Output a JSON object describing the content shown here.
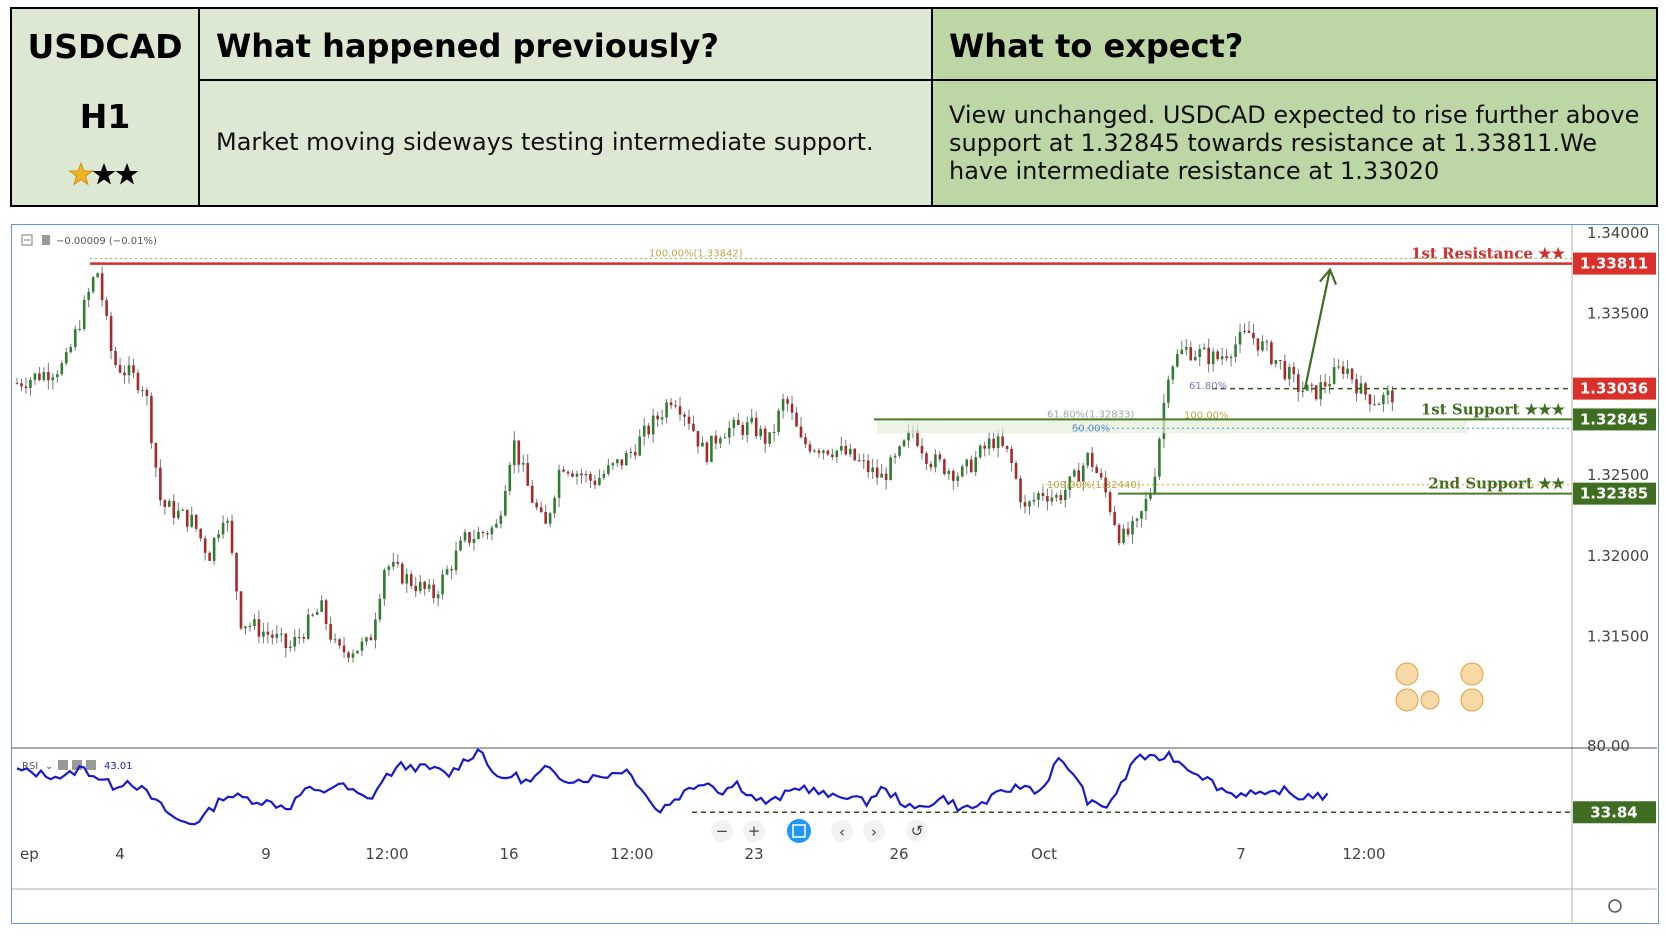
{
  "summary": {
    "symbol": "USDCAD",
    "timeframe": "H1",
    "stars_filled": 2,
    "stars_total": 3,
    "prev_heading": "What happened previously?",
    "prev_text": "Market moving sideways testing intermediate support.",
    "expect_heading": "What to expect?",
    "expect_text": "View unchanged. USDCAD expected to rise further above support at 1.32845 towards resistance at 1.33811.We have intermediate resistance at 1.33020"
  },
  "chart_header": {
    "change": "−0.00009 (−0.01%)"
  },
  "rsi_header": {
    "label": "RSI",
    "value": "43.01"
  },
  "colors": {
    "bull": "#2e7d32",
    "bear": "#a52a2a",
    "resistance": "#d32f2f",
    "support": "#4a7c2a",
    "rsi_line": "#1a1acd",
    "axis_text": "#444444"
  },
  "chart_data": {
    "type": "candlestick",
    "price_axis": {
      "min": 1.311,
      "max": 1.3405,
      "ticks": [
        "1.34000",
        "1.33500",
        "1.32500",
        "1.32000",
        "1.31500"
      ]
    },
    "x_axis": {
      "tick_labels": [
        "ep",
        "4",
        "9",
        "12:00",
        "16",
        "12:00",
        "23",
        "26",
        "Oct",
        "7",
        "12:00"
      ]
    },
    "levels": [
      {
        "name": "1st Resistance",
        "stars": "★★",
        "price": 1.33811,
        "label": "1.33811",
        "kind": "resistance"
      },
      {
        "name": "",
        "stars": "",
        "price": 1.33036,
        "label": "1.33036",
        "kind": "current"
      },
      {
        "name": "1st Support",
        "stars": "★★★",
        "price": 1.32845,
        "label": "1.32845",
        "kind": "support"
      },
      {
        "name": "2nd Support",
        "stars": "★★",
        "price": 1.32385,
        "label": "1.32385",
        "kind": "support"
      }
    ],
    "fib_labels": {
      "top": "100.00%(1.33842)",
      "retrace_618": "61.80%",
      "retrace_618b": "61.80%(1.32833)",
      "retrace_50": "50.00%",
      "ext_100": "100.00%",
      "ext_100b": "100.00%(1.32440)"
    },
    "price_path": [
      [
        0,
        1.3307
      ],
      [
        3,
        1.3318
      ],
      [
        5,
        1.3378
      ],
      [
        6,
        1.332
      ],
      [
        8,
        1.3305
      ],
      [
        9,
        1.3232
      ],
      [
        11,
        1.3221
      ],
      [
        12,
        1.32
      ],
      [
        13,
        1.323
      ],
      [
        14,
        1.316
      ],
      [
        16,
        1.315
      ],
      [
        17,
        1.3142
      ],
      [
        19,
        1.3168
      ],
      [
        20,
        1.314
      ],
      [
        22,
        1.3145
      ],
      [
        23,
        1.3195
      ],
      [
        26,
        1.3175
      ],
      [
        28,
        1.321
      ],
      [
        30,
        1.3218
      ],
      [
        31,
        1.3272
      ],
      [
        32,
        1.324
      ],
      [
        33,
        1.3216
      ],
      [
        34,
        1.3258
      ],
      [
        36,
        1.3246
      ],
      [
        38,
        1.326
      ],
      [
        40,
        1.3285
      ],
      [
        41,
        1.33
      ],
      [
        42,
        1.3285
      ],
      [
        43,
        1.3262
      ],
      [
        44,
        1.3278
      ],
      [
        46,
        1.328
      ],
      [
        47,
        1.327
      ],
      [
        48,
        1.3298
      ],
      [
        49,
        1.327
      ],
      [
        51,
        1.3266
      ],
      [
        52,
        1.3262
      ],
      [
        54,
        1.3248
      ],
      [
        55,
        1.326
      ],
      [
        56,
        1.3278
      ],
      [
        57,
        1.326
      ],
      [
        59,
        1.325
      ],
      [
        61,
        1.3272
      ],
      [
        62,
        1.3262
      ],
      [
        63,
        1.3228
      ],
      [
        64,
        1.324
      ],
      [
        65,
        1.3236
      ],
      [
        66,
        1.3246
      ],
      [
        67,
        1.3262
      ],
      [
        68,
        1.324
      ],
      [
        69,
        1.321
      ],
      [
        70,
        1.3218
      ],
      [
        71,
        1.3245
      ],
      [
        72,
        1.3318
      ],
      [
        73,
        1.3328
      ],
      [
        75,
        1.3322
      ],
      [
        76,
        1.333
      ],
      [
        77,
        1.3338
      ],
      [
        79,
        1.3318
      ],
      [
        80,
        1.3305
      ],
      [
        81,
        1.33
      ],
      [
        83,
        1.3318
      ],
      [
        84,
        1.3302
      ],
      [
        85,
        1.3296
      ],
      [
        86,
        1.33
      ]
    ],
    "rsi": {
      "range": [
        0,
        100
      ],
      "ticks": [
        "80.00"
      ],
      "level": 33.84,
      "level_label": "33.84",
      "values": [
        [
          0,
          63
        ],
        [
          3,
          58
        ],
        [
          4,
          65
        ],
        [
          6,
          52
        ],
        [
          7,
          56
        ],
        [
          8,
          48
        ],
        [
          9,
          38
        ],
        [
          10,
          28
        ],
        [
          11,
          26
        ],
        [
          12,
          34
        ],
        [
          13,
          46
        ],
        [
          14,
          44
        ],
        [
          16,
          40
        ],
        [
          17,
          37
        ],
        [
          18,
          50
        ],
        [
          19,
          47
        ],
        [
          20,
          54
        ],
        [
          21,
          48
        ],
        [
          22,
          42
        ],
        [
          23,
          58
        ],
        [
          24,
          66
        ],
        [
          26,
          64
        ],
        [
          27,
          60
        ],
        [
          28,
          70
        ],
        [
          29,
          78
        ],
        [
          30,
          56
        ],
        [
          31,
          60
        ],
        [
          32,
          54
        ],
        [
          33,
          64
        ],
        [
          34,
          58
        ],
        [
          35,
          56
        ],
        [
          37,
          60
        ],
        [
          38,
          64
        ],
        [
          39,
          52
        ],
        [
          40,
          34
        ],
        [
          42,
          50
        ],
        [
          43,
          56
        ],
        [
          44,
          48
        ],
        [
          45,
          54
        ],
        [
          46,
          44
        ],
        [
          47,
          40
        ],
        [
          49,
          52
        ],
        [
          50,
          48
        ],
        [
          51,
          44
        ],
        [
          52,
          46
        ],
        [
          53,
          40
        ],
        [
          54,
          50
        ],
        [
          55,
          44
        ],
        [
          56,
          35
        ],
        [
          57,
          40
        ],
        [
          58,
          44
        ],
        [
          59,
          36
        ],
        [
          60,
          38
        ],
        [
          61,
          44
        ],
        [
          62,
          50
        ],
        [
          63,
          52
        ],
        [
          64,
          48
        ],
        [
          65,
          70
        ],
        [
          66,
          62
        ],
        [
          67,
          40
        ],
        [
          68,
          37
        ],
        [
          69,
          52
        ],
        [
          70,
          74
        ],
        [
          71,
          70
        ],
        [
          72,
          74
        ],
        [
          73,
          66
        ],
        [
          74,
          60
        ],
        [
          75,
          52
        ],
        [
          76,
          46
        ],
        [
          77,
          48
        ],
        [
          78,
          44
        ],
        [
          79,
          50
        ],
        [
          80,
          44
        ],
        [
          81,
          46
        ],
        [
          82,
          44
        ]
      ]
    }
  },
  "toolbar": {
    "zoom_out": "−",
    "zoom_in": "+",
    "prev": "‹",
    "next": "›",
    "reset": "↺"
  }
}
